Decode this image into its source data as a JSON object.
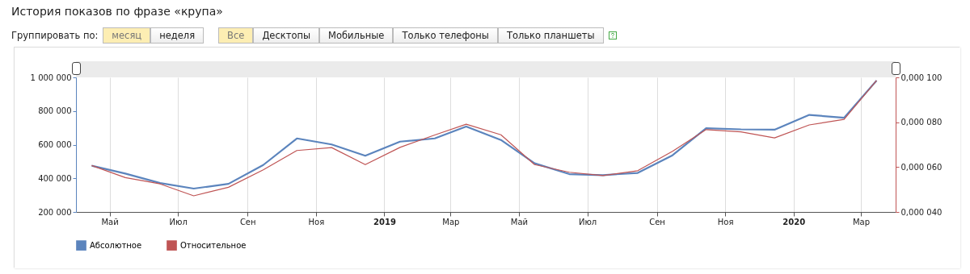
{
  "chart_data": {
    "type": "line",
    "title": "История показов по фразе «крупа»",
    "annotations": [
      "Группировать по:",
      "месяц",
      "неделя",
      "Все",
      "Десктопы",
      "Мобильные",
      "Только телефоны",
      "Только планшеты"
    ],
    "x": [
      "2018-04-15",
      "2018-05-15",
      "2018-06-15",
      "2018-07-15",
      "2018-08-15",
      "2018-09-15",
      "2018-10-15",
      "2018-11-15",
      "2018-12-15",
      "2019-01-15",
      "2019-02-15",
      "2019-03-15",
      "2019-04-15",
      "2019-05-15",
      "2019-06-15",
      "2019-07-15",
      "2019-08-15",
      "2019-09-15",
      "2019-10-15",
      "2019-11-15",
      "2019-12-15",
      "2020-01-15",
      "2020-02-15",
      "2020-03-15"
    ],
    "xlim": [
      "2018-04-01",
      "2020-04-01"
    ],
    "xticks": [
      {
        "value": "2018-05-01",
        "label": "Май"
      },
      {
        "value": "2018-07-01",
        "label": "Июл"
      },
      {
        "value": "2018-09-01",
        "label": "Сен"
      },
      {
        "value": "2018-11-01",
        "label": "Ноя"
      },
      {
        "value": "2019-01-01",
        "label": "2019"
      },
      {
        "value": "2019-03-01",
        "label": "Мар"
      },
      {
        "value": "2019-05-01",
        "label": "Май"
      },
      {
        "value": "2019-07-01",
        "label": "Июл"
      },
      {
        "value": "2019-09-01",
        "label": "Сен"
      },
      {
        "value": "2019-11-01",
        "label": "Ноя"
      },
      {
        "value": "2020-01-01",
        "label": "2020"
      },
      {
        "value": "2020-03-01",
        "label": "Мар"
      }
    ],
    "ylim": [
      200000,
      1000000
    ],
    "yticks": [
      {
        "value": 200000,
        "label": "200 000"
      },
      {
        "value": 400000,
        "label": "400 000"
      },
      {
        "value": 600000,
        "label": "600 000"
      },
      {
        "value": 800000,
        "label": "800 000"
      },
      {
        "value": 1000000,
        "label": "1 000 000"
      }
    ],
    "y2lim": [
      4e-05,
      0.0001
    ],
    "y2ticks": [
      {
        "value": 4e-05,
        "label": "0,000 040"
      },
      {
        "value": 6e-05,
        "label": "0,000 060"
      },
      {
        "value": 8e-05,
        "label": "0,000 080"
      },
      {
        "value": 0.0001,
        "label": "0,000 100"
      }
    ],
    "series": [
      {
        "name": "Абсолютное",
        "color": "#5b84bd",
        "values": [
          475000,
          428000,
          372000,
          339000,
          367000,
          479000,
          637000,
          601000,
          534000,
          618000,
          637000,
          708000,
          628000,
          489000,
          425000,
          419000,
          432000,
          537000,
          698000,
          691000,
          689000,
          777000,
          760000,
          981000
        ]
      },
      {
        "name": "Относительное",
        "color": "#bf5454",
        "axis": "y2",
        "values": [
          6.07e-05,
          5.53e-05,
          5.25e-05,
          4.72e-05,
          5.1e-05,
          5.88e-05,
          6.74e-05,
          6.87e-05,
          6.11e-05,
          6.88e-05,
          7.43e-05,
          7.91e-05,
          7.44e-05,
          6.11e-05,
          5.77e-05,
          5.62e-05,
          5.84e-05,
          6.7e-05,
          7.67e-05,
          7.57e-05,
          7.3e-05,
          7.88e-05,
          8.13e-05,
          9.86e-05
        ]
      }
    ],
    "grid": "x",
    "legend": "bottom left",
    "line_style": "solid"
  }
}
